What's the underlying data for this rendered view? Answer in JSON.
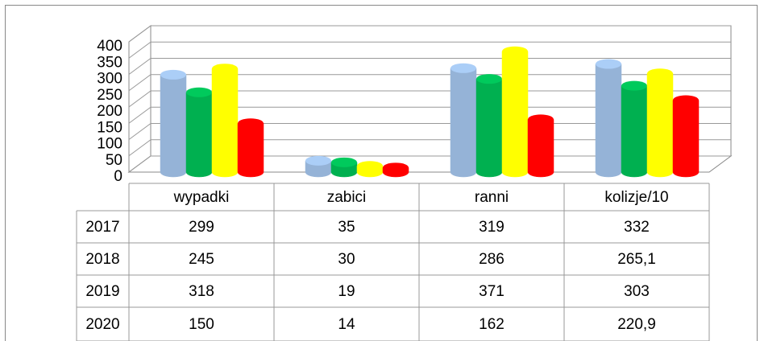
{
  "chart_data": {
    "type": "bar3d",
    "categories": [
      "wypadki",
      "zabici",
      "ranni",
      "kolizje/10"
    ],
    "series": [
      {
        "name": "2017",
        "color": "#95b3d7",
        "values": [
          299,
          35,
          319,
          332
        ]
      },
      {
        "name": "2018",
        "color": "#00b050",
        "values": [
          245,
          30,
          286,
          265.1
        ],
        "value_labels": [
          "245",
          "30",
          "286",
          "265,1"
        ]
      },
      {
        "name": "2019",
        "color": "#ffff00",
        "values": [
          318,
          19,
          371,
          303
        ]
      },
      {
        "name": "2020",
        "color": "#ff0000",
        "values": [
          150,
          14,
          162,
          220.9
        ],
        "value_labels": [
          "150",
          "14",
          "162",
          "220,9"
        ]
      }
    ],
    "ylim": [
      0,
      400
    ],
    "yticks": [
      0,
      50,
      100,
      150,
      200,
      250,
      300,
      350,
      400
    ],
    "grid": true
  }
}
